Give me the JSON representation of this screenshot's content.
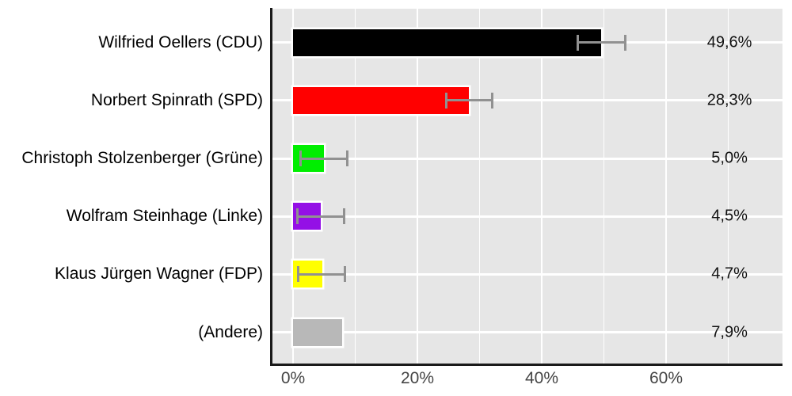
{
  "chart_data": {
    "type": "bar",
    "orientation": "horizontal",
    "title": "",
    "xlabel": "",
    "ylabel": "",
    "categories": [
      "Wilfried Oellers (CDU)",
      "Norbert Spinrath (SPD)",
      "Christoph Stolzenberger (Grüne)",
      "Wolfram Steinhage (Linke)",
      "Klaus Jürgen Wagner (FDP)",
      "(Andere)"
    ],
    "values": [
      49.6,
      28.3,
      5.0,
      4.5,
      4.7,
      7.9
    ],
    "value_labels": [
      "49,6%",
      "28,3%",
      "5,0%",
      "4,5%",
      "4,7%",
      "7,9%"
    ],
    "bar_colors": [
      "#000000",
      "#FF0000",
      "#00EE00",
      "#9410E6",
      "#FFFF00",
      "#B8B8B8"
    ],
    "error_bars": [
      {
        "low": 45.8,
        "high": 53.4
      },
      {
        "low": 24.6,
        "high": 32.1
      },
      {
        "low": 1.2,
        "high": 8.7
      },
      {
        "low": 0.7,
        "high": 8.2
      },
      {
        "low": 0.8,
        "high": 8.4
      },
      null
    ],
    "x_ticks": [
      {
        "value": 0,
        "label": "0%"
      },
      {
        "value": 20,
        "label": "20%"
      },
      {
        "value": 40,
        "label": "40%"
      },
      {
        "value": 60,
        "label": "60%"
      }
    ],
    "x_minor_ticks": [
      10,
      30,
      50,
      70
    ],
    "xlim": [
      -3.3,
      78.8
    ],
    "grid": true,
    "legend": false,
    "colors": {
      "background": "#FFFFFF",
      "panel_bg": "#E6E6E6",
      "grid_major": "#FFFFFF",
      "grid_minor": "#FFFFFF",
      "axis_line": "#1A1A1A",
      "errorbar": "#919191",
      "bar_outline": "#FFFFFF",
      "tick_label": "#454545",
      "category_label": "#000000",
      "value_label": "#111111"
    }
  }
}
